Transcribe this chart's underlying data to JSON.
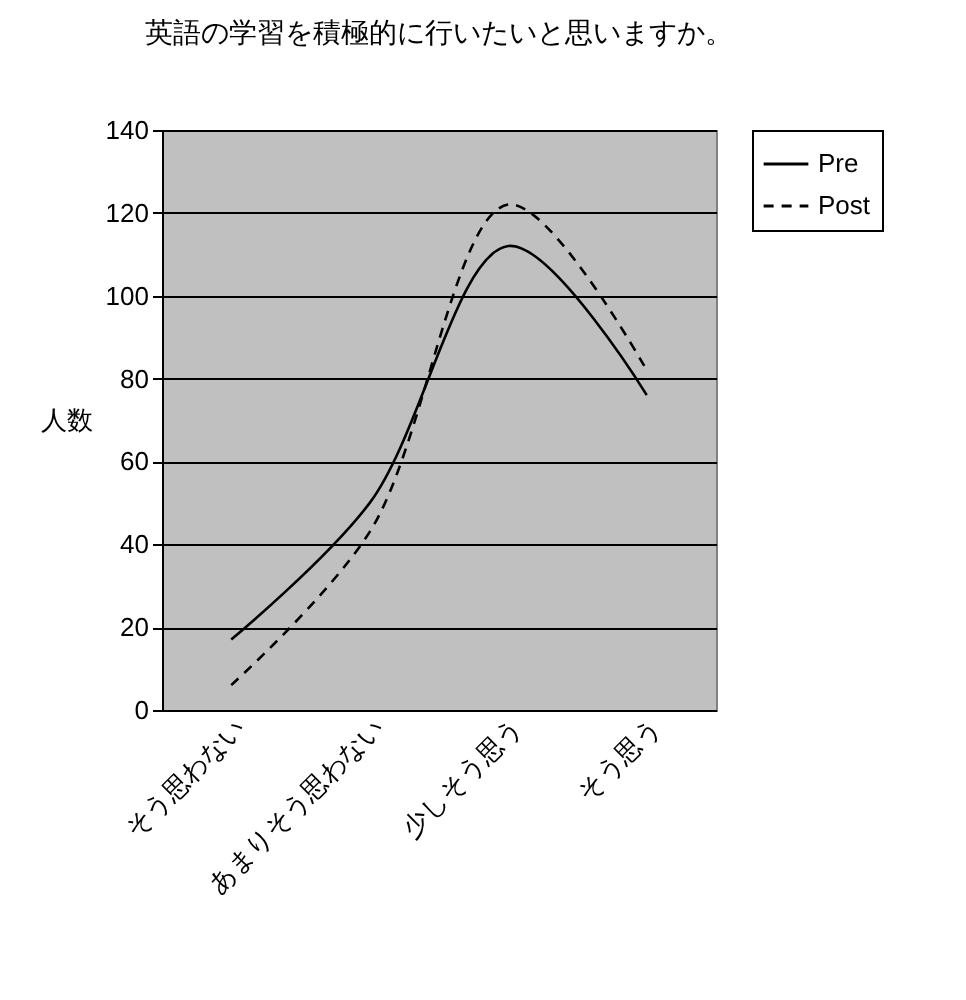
{
  "chart_data": {
    "type": "line",
    "title": "英語の学習を積極的に行いたいと思いますか。",
    "ylabel": "人数",
    "categories": [
      "そう思わない",
      "あまりそう思わない",
      "少しそう思う",
      "そう思う"
    ],
    "series": [
      {
        "name": "Pre",
        "color": "#000000",
        "line_style": "solid",
        "values": [
          17,
          50,
          112,
          76
        ]
      },
      {
        "name": "Post",
        "color": "#000000",
        "line_style": "dashed",
        "values": [
          6,
          43,
          122,
          82
        ]
      }
    ],
    "ylim": [
      0,
      140
    ],
    "yticks": [
      0,
      20,
      40,
      60,
      80,
      100,
      120,
      140
    ],
    "grid": "y",
    "legend": "right",
    "marker": "none"
  }
}
